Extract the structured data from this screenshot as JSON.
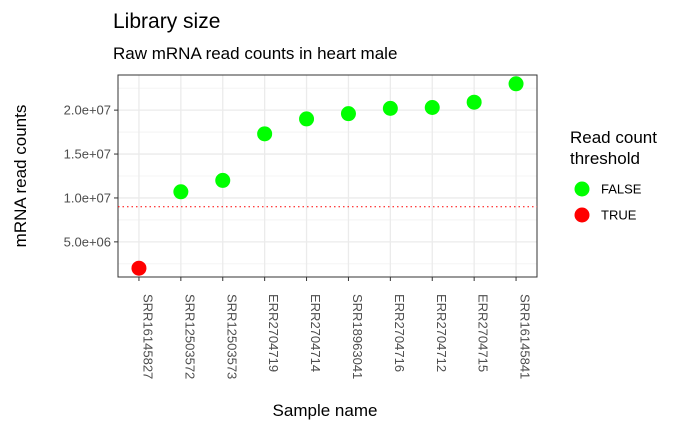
{
  "chart_data": {
    "type": "scatter",
    "title": "Library size",
    "subtitle": "Raw mRNA read counts in heart male",
    "xlabel": "Sample name",
    "ylabel": "mRNA read counts",
    "categories": [
      "SRR16145827",
      "SRR12503572",
      "SRR12503573",
      "ERR2704719",
      "ERR2704714",
      "SRR18963041",
      "ERR2704716",
      "ERR2704712",
      "ERR2704715",
      "SRR16145841"
    ],
    "values": [
      2000000,
      10700000,
      12000000,
      17300000,
      19000000,
      19600000,
      20200000,
      20300000,
      20900000,
      23000000
    ],
    "threshold_flag": [
      true,
      false,
      false,
      false,
      false,
      false,
      false,
      false,
      false,
      false
    ],
    "ylim": [
      1000000,
      24000000
    ],
    "yticks": [
      5000000,
      10000000,
      15000000,
      20000000
    ],
    "ytick_labels": [
      "5.0e+06",
      "1.0e+07",
      "1.5e+07",
      "2.0e+07"
    ],
    "threshold_line": 9000000,
    "threshold_line_color": "#ff0000",
    "grid": true,
    "legend": {
      "title": "Read count threshold",
      "title_lines": [
        "Read count",
        "threshold"
      ],
      "position": "right",
      "entries": [
        {
          "label": "FALSE",
          "color": "#00ff00"
        },
        {
          "label": "TRUE",
          "color": "#ff0000"
        }
      ]
    }
  }
}
